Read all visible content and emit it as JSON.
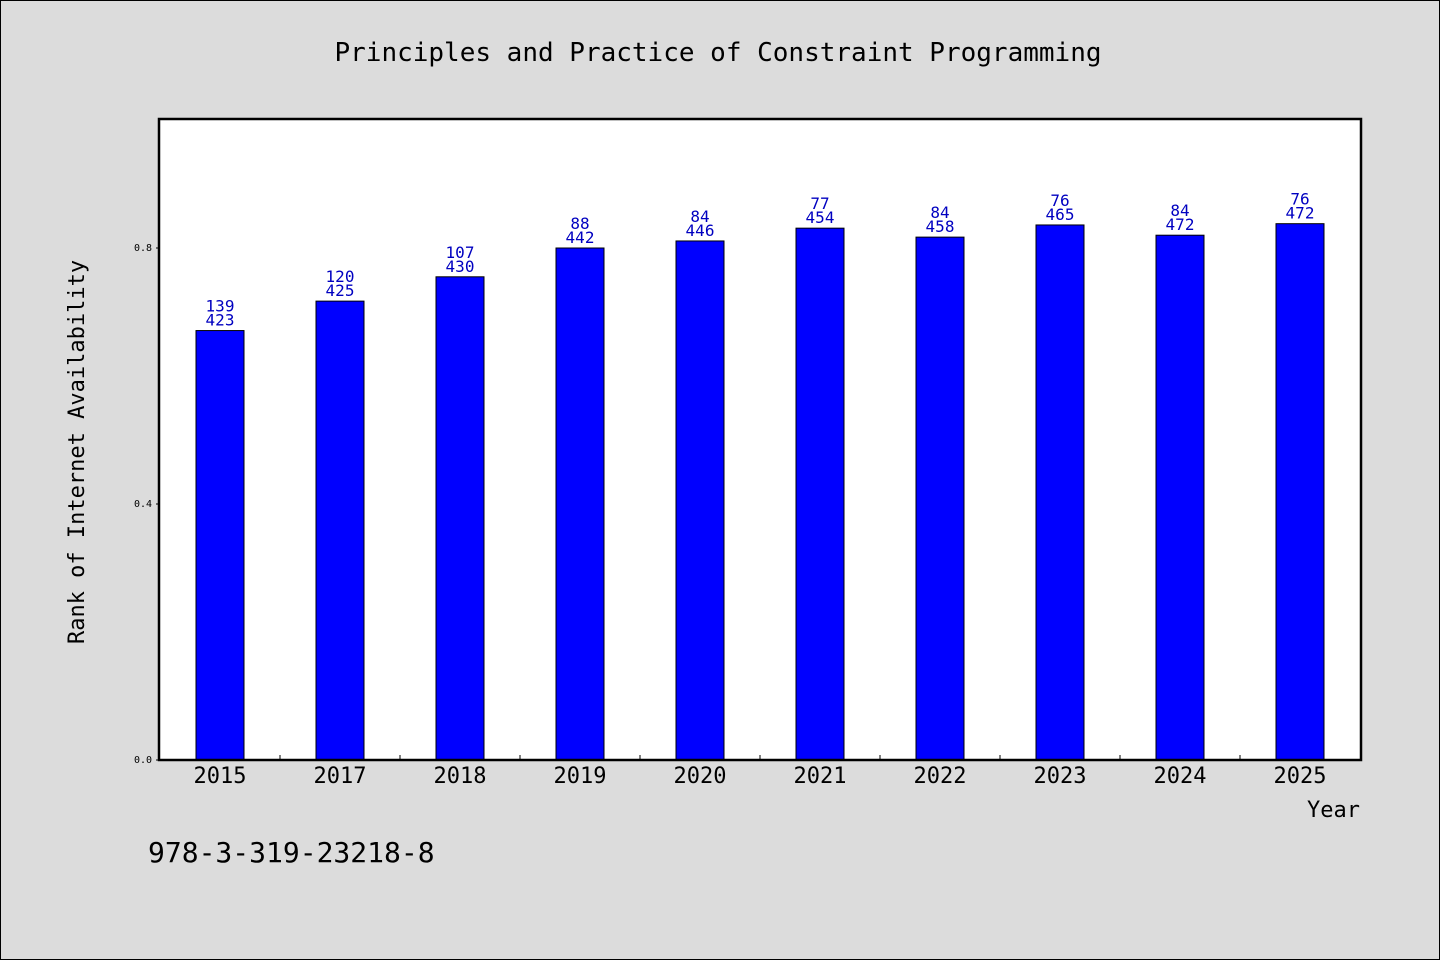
{
  "chart_data": {
    "type": "bar",
    "title": "Principles and Practice of Constraint Programming",
    "xlabel": "Year",
    "ylabel": "Rank of Internet Availability",
    "categories": [
      "2015",
      "2017",
      "2018",
      "2019",
      "2020",
      "2021",
      "2022",
      "2023",
      "2024",
      "2025"
    ],
    "values": [
      0.671,
      0.717,
      0.755,
      0.8,
      0.811,
      0.831,
      0.817,
      0.836,
      0.82,
      0.838
    ],
    "labels_top": [
      "139",
      "120",
      "107",
      "88",
      "84",
      "77",
      "84",
      "76",
      "84",
      "76"
    ],
    "labels_bottom": [
      "423",
      "425",
      "430",
      "442",
      "446",
      "454",
      "458",
      "465",
      "472",
      "472"
    ],
    "yticks": [
      "0.0",
      "0.4",
      "0.8"
    ],
    "ytick_values": [
      0,
      0.4,
      0.8
    ],
    "ylim": [
      0,
      1.0
    ],
    "grid": false,
    "bar_color": "#0000ff",
    "label_color": "#0000c0",
    "footer": "978-3-319-23218-8"
  }
}
